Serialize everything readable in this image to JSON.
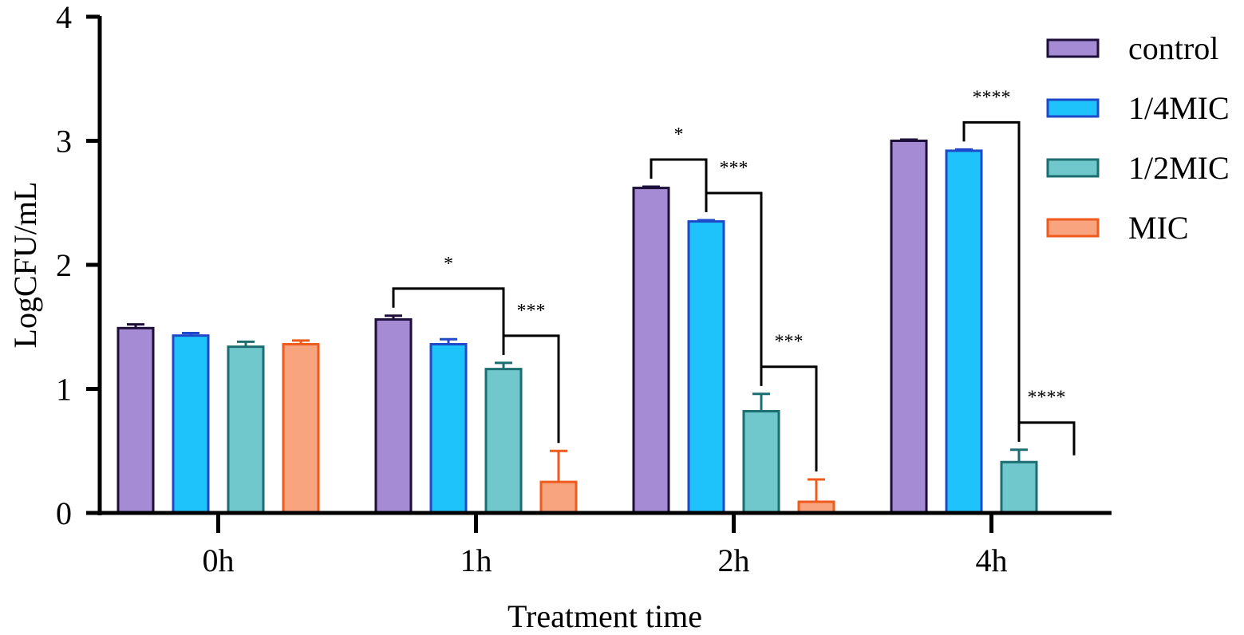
{
  "chart_data": {
    "type": "bar",
    "title": "",
    "xlabel": "Treatment time",
    "ylabel": "LogCFU/mL",
    "ylim": [
      0,
      4
    ],
    "yticks": [
      "0",
      "1",
      "2",
      "3",
      "4"
    ],
    "categories": [
      "0h",
      "1h",
      "2h",
      "4h"
    ],
    "series": [
      {
        "name": "control",
        "fill": "#a48bd3",
        "stroke": "#1e0f3a",
        "values": [
          1.49,
          1.56,
          2.62,
          3.0
        ],
        "errors": [
          0.03,
          0.03,
          0.01,
          0.01
        ]
      },
      {
        "name": "1/4MIC",
        "fill": "#1fc3fb",
        "stroke": "#1f49c9",
        "values": [
          1.43,
          1.36,
          2.35,
          2.92
        ],
        "errors": [
          0.02,
          0.04,
          0.01,
          0.01
        ]
      },
      {
        "name": "1/2MIC",
        "fill": "#70c8cd",
        "stroke": "#1c6e71",
        "values": [
          1.34,
          1.16,
          0.82,
          0.41
        ],
        "errors": [
          0.04,
          0.05,
          0.14,
          0.1
        ]
      },
      {
        "name": "MIC",
        "fill": "#f8a47e",
        "stroke": "#ef5a1e",
        "values": [
          1.36,
          0.25,
          0.09,
          null
        ],
        "errors": [
          0.03,
          0.25,
          0.18,
          null
        ]
      }
    ],
    "significance": [
      {
        "category": 1,
        "from": 0,
        "to": 2,
        "label": "*"
      },
      {
        "category": 1,
        "from": 2,
        "to": 3,
        "label": "***"
      },
      {
        "category": 2,
        "from": 0,
        "to": 1,
        "label": "*"
      },
      {
        "category": 2,
        "from": 1,
        "to": 2,
        "label": "***"
      },
      {
        "category": 2,
        "from": 2,
        "to": 3,
        "label": "***"
      },
      {
        "category": 3,
        "from": 1,
        "to": 2,
        "label": "****"
      },
      {
        "category": 3,
        "from": 2,
        "to": 3,
        "label": "****"
      }
    ],
    "legend": "top-right"
  }
}
